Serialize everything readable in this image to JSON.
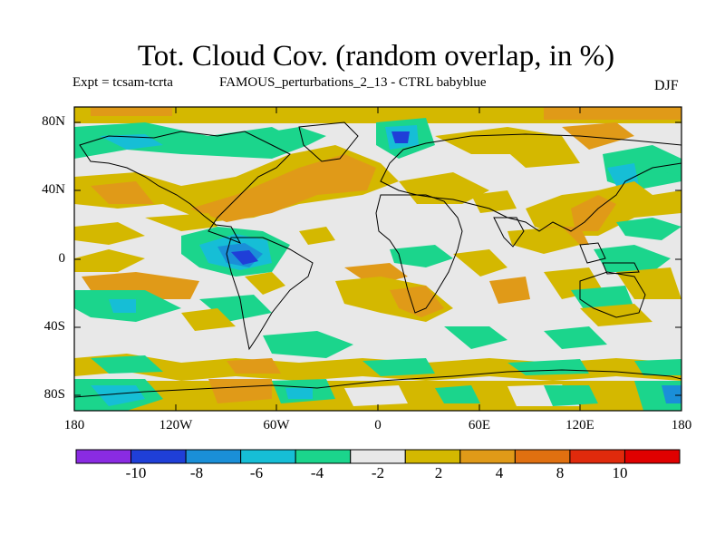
{
  "title": "Tot. Cloud Cov. (random overlap, in %)",
  "subtitle_left": "Expt = tcsam-tcrta",
  "subtitle_mid": "FAMOUS_perturbations_2_13 - CTRL babyblue",
  "season": "DJF",
  "lat_labels": [
    "80N",
    "40N",
    "0",
    "40S",
    "80S"
  ],
  "lon_labels": [
    "180",
    "120W",
    "60W",
    "0",
    "60E",
    "120E",
    "180"
  ],
  "colorbar": {
    "colors": [
      "#8a2be2",
      "#1f3fd8",
      "#1a8fd8",
      "#16bed6",
      "#1bd58c",
      "#e8e8e8",
      "#d4b800",
      "#e09a18",
      "#e07010",
      "#e02a0c",
      "#e00000"
    ],
    "tick_labels": [
      "-10",
      "-8",
      "-6",
      "-4",
      "-2",
      "2",
      "4",
      "8",
      "10"
    ]
  }
}
